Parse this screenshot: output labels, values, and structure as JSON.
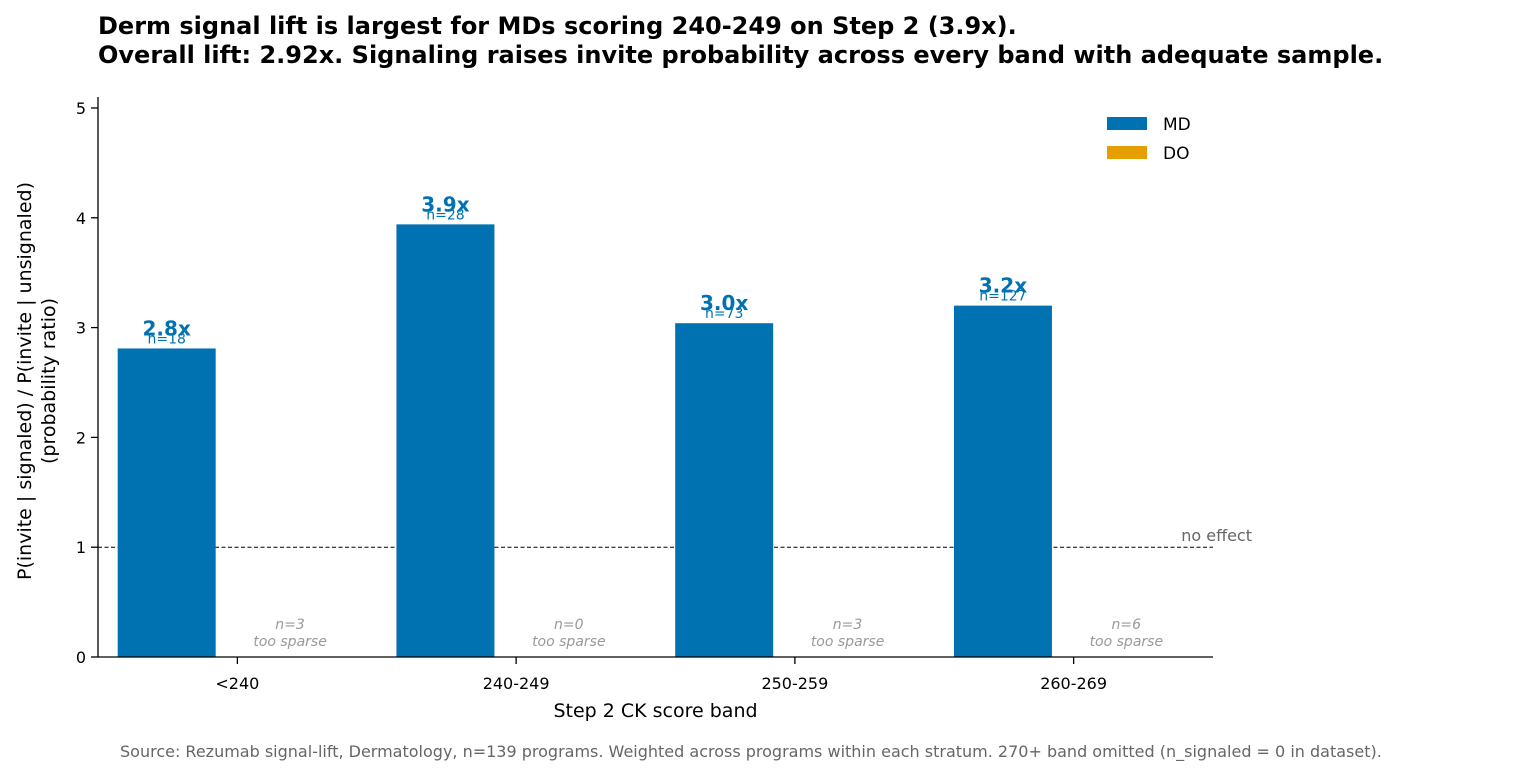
{
  "title_line1": "Derm signal lift is largest for MDs scoring 240-249 on Step 2 (3.9x).",
  "title_line2": "Overall lift: 2.92x. Signaling raises invite probability across every band with adequate sample.",
  "source": "Source: Rezumab signal-lift, Dermatology, n=139 programs. Weighted across programs within each stratum. 270+ band omitted (n_signaled = 0 in dataset).",
  "chart_data": {
    "type": "bar",
    "xlabel": "Step 2 CK score band",
    "ylabel_line1": "P(invite | signaled) / P(invite | unsignaled)",
    "ylabel_line2": "(probability ratio)",
    "categories": [
      "<240",
      "240-249",
      "250-259",
      "260-269"
    ],
    "ylim": [
      0,
      5.1
    ],
    "yticks": [
      0,
      1,
      2,
      3,
      4,
      5
    ],
    "legend_position": "top-right",
    "series": [
      {
        "name": "MD",
        "color": "#0072B2",
        "values": [
          2.81,
          3.94,
          3.04,
          3.2
        ],
        "value_labels": [
          "2.8x",
          "3.9x",
          "3.0x",
          "3.2x"
        ],
        "n_labels": [
          "n=18",
          "n=28",
          "n=73",
          "n=127"
        ]
      },
      {
        "name": "DO",
        "color": "#E69F00",
        "values": [
          null,
          null,
          null,
          null
        ],
        "n_labels": [
          "n=3",
          "n=0",
          "n=3",
          "n=6"
        ],
        "sparse_label": "too sparse"
      }
    ],
    "reference_line": {
      "y": 1,
      "label": "no effect"
    }
  }
}
